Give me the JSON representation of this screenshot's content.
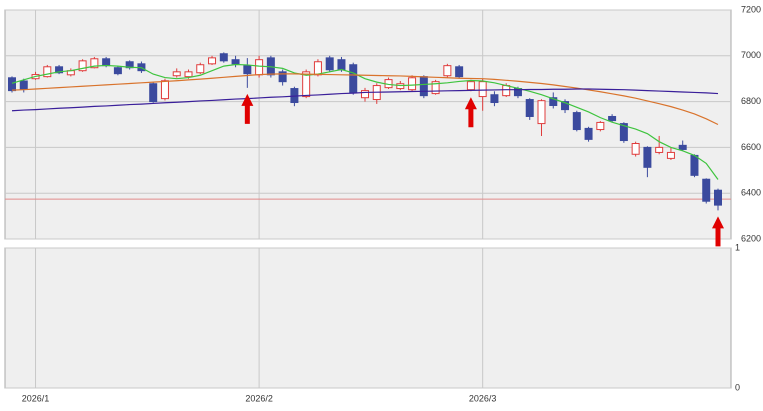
{
  "chart_data": {
    "type": "candlestick",
    "categories": [
      null,
      null,
      "2026/1",
      null,
      null,
      null,
      null,
      null,
      null,
      null,
      null,
      null,
      null,
      null,
      null,
      null,
      null,
      null,
      null,
      null,
      null,
      "2026/2",
      null,
      null,
      null,
      null,
      null,
      null,
      null,
      null,
      null,
      null,
      null,
      null,
      null,
      null,
      null,
      null,
      null,
      null,
      "2026/3",
      null,
      null,
      null,
      null,
      null,
      null,
      null,
      null,
      null,
      null,
      null,
      null,
      null,
      null,
      null,
      null,
      null,
      null,
      null,
      null
    ],
    "open": [
      6904,
      6890,
      6900,
      6909,
      6952,
      6917,
      6935,
      6948,
      6987,
      6948,
      6974,
      6965,
      6878,
      6813,
      6913,
      6909,
      6926,
      6965,
      7009,
      6983,
      6957,
      6917,
      6991,
      6930,
      6857,
      6822,
      6917,
      6991,
      6983,
      6961,
      6817,
      6809,
      6861,
      6857,
      6852,
      6909,
      6835,
      6913,
      6952,
      6852,
      6822,
      6830,
      6826,
      6857,
      6809,
      6704,
      6817,
      6800,
      6752,
      6683,
      6678,
      6735,
      6704,
      6570,
      6600,
      6578,
      6552,
      6609,
      6565,
      6461,
      6413
    ],
    "high": [
      6910,
      6900,
      6930,
      6960,
      6960,
      6945,
      6985,
      6995,
      6995,
      6955,
      6980,
      6975,
      6885,
      6900,
      6945,
      6940,
      6970,
      7000,
      7015,
      7000,
      6990,
      7000,
      7000,
      6940,
      6865,
      6940,
      6985,
      7000,
      6995,
      6970,
      6860,
      6880,
      6905,
      6890,
      6915,
      6915,
      6895,
      6965,
      6960,
      6895,
      6900,
      6845,
      6880,
      6865,
      6815,
      6810,
      6840,
      6810,
      6760,
      6690,
      6715,
      6745,
      6710,
      6625,
      6605,
      6650,
      6600,
      6630,
      6570,
      6465,
      6420
    ],
    "low": [
      6840,
      6840,
      6895,
      6905,
      6920,
      6910,
      6930,
      6945,
      6950,
      6915,
      6940,
      6925,
      6795,
      6805,
      6905,
      6900,
      6920,
      6960,
      6970,
      6950,
      6860,
      6905,
      6905,
      6870,
      6780,
      6815,
      6910,
      6930,
      6930,
      6830,
      6800,
      6790,
      6855,
      6850,
      6845,
      6815,
      6830,
      6905,
      6900,
      6845,
      6760,
      6780,
      6820,
      6815,
      6720,
      6650,
      6770,
      6750,
      6670,
      6625,
      6670,
      6710,
      6620,
      6560,
      6470,
      6570,
      6545,
      6585,
      6470,
      6355,
      6325
    ],
    "close": [
      6848,
      6853,
      6918,
      6952,
      6926,
      6935,
      6978,
      6987,
      6957,
      6922,
      6948,
      6935,
      6800,
      6891,
      6930,
      6930,
      6961,
      6991,
      6978,
      6965,
      6922,
      6983,
      6917,
      6887,
      6796,
      6930,
      6974,
      6939,
      6939,
      6839,
      6848,
      6870,
      6896,
      6878,
      6904,
      6826,
      6887,
      6957,
      6909,
      6887,
      6887,
      6796,
      6870,
      6826,
      6735,
      6804,
      6783,
      6765,
      6678,
      6635,
      6709,
      6717,
      6630,
      6617,
      6513,
      6600,
      6578,
      6591,
      6478,
      6365,
      6348
    ],
    "up_color": "#e03c3c",
    "down_color": "#3b4a9e",
    "lines": [
      {
        "color": "#3ec43e",
        "values": [
          6880,
          6895,
          6910,
          6920,
          6930,
          6935,
          6945,
          6955,
          6958,
          6955,
          6950,
          6948,
          6920,
          6905,
          6900,
          6905,
          6915,
          6935,
          6955,
          6962,
          6960,
          6955,
          6952,
          6945,
          6925,
          6915,
          6920,
          6930,
          6940,
          6925,
          6900,
          6885,
          6875,
          6870,
          6872,
          6875,
          6878,
          6882,
          6888,
          6892,
          6890,
          6882,
          6870,
          6858,
          6845,
          6830,
          6812,
          6795,
          6775,
          6755,
          6730,
          6710,
          6695,
          6680,
          6660,
          6625,
          6600,
          6585,
          6565,
          6530,
          6460
        ]
      },
      {
        "color": "#d9732c",
        "values": [
          6850,
          6852,
          6855,
          6858,
          6861,
          6864,
          6867,
          6870,
          6873,
          6876,
          6879,
          6882,
          6885,
          6888,
          6891,
          6895,
          6898,
          6902,
          6906,
          6910,
          6914,
          6918,
          6920,
          6921,
          6921,
          6920,
          6919,
          6918,
          6917,
          6916,
          6915,
          6914,
          6913,
          6912,
          6910,
          6908,
          6906,
          6904,
          6902,
          6901,
          6900,
          6897,
          6893,
          6889,
          6884,
          6879,
          6873,
          6866,
          6859,
          6851,
          6843,
          6834,
          6825,
          6815,
          6803,
          6791,
          6778,
          6763,
          6746,
          6725,
          6700
        ]
      },
      {
        "color": "#3a1f9a",
        "values": [
          6760,
          6763,
          6765,
          6768,
          6771,
          6773,
          6776,
          6779,
          6781,
          6784,
          6787,
          6789,
          6792,
          6795,
          6797,
          6800,
          6803,
          6805,
          6808,
          6811,
          6813,
          6816,
          6819,
          6821,
          6824,
          6827,
          6829,
          6832,
          6835,
          6837,
          6840,
          6841,
          6842,
          6843,
          6844,
          6845,
          6846,
          6847,
          6848,
          6849,
          6850,
          6851,
          6852,
          6852,
          6853,
          6853,
          6854,
          6854,
          6855,
          6855,
          6854,
          6853,
          6852,
          6850,
          6848,
          6846,
          6844,
          6842,
          6840,
          6838,
          6835
        ]
      }
    ],
    "reference_line": {
      "value": 6374,
      "color": "#e08a8a"
    },
    "signals": {
      "indices": [
        20,
        39,
        60
      ],
      "color": "#e00000"
    },
    "ylim": [
      6200,
      7200
    ],
    "yticks": [
      6200,
      6400,
      6600,
      6800,
      7000,
      7200
    ],
    "volume_panel": {
      "ylim": [
        0,
        1
      ],
      "yticks": [
        0,
        1
      ]
    },
    "grid": true
  }
}
